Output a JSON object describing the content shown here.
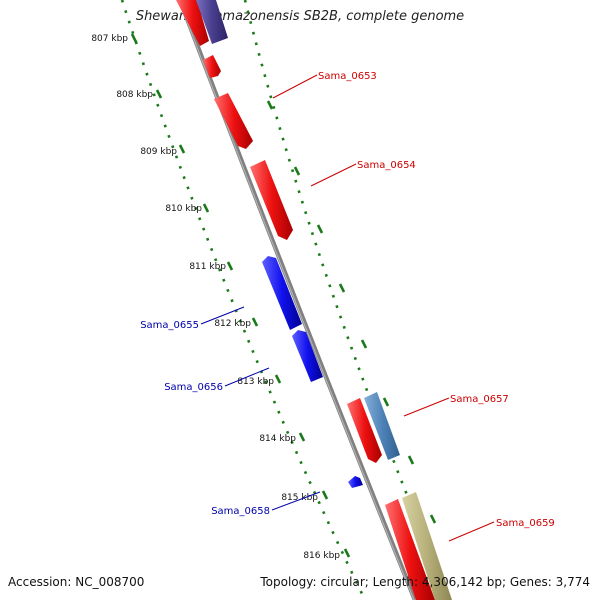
{
  "title": "Shewanella amazonensis SB2B, complete genome",
  "footer": {
    "accession": "Accession: NC_008700",
    "topology": "Topology: circular; Length: 4,306,142 bp; Genes: 3,774"
  },
  "colors": {
    "forward_gene": "#ee1111",
    "reverse_gene": "#1111ee",
    "forward_label": "#cc0000",
    "reverse_label": "#0000aa",
    "backbone": "#808080",
    "tick": "#1a7a1a",
    "steelblue_feature": "#4f83b8",
    "khaki_feature": "#b7b07a",
    "navy_feature": "#4a3f8f"
  },
  "kbp_ticks": [
    "807 kbp",
    "808 kbp",
    "809 kbp",
    "810 kbp",
    "811 kbp",
    "812 kbp",
    "813 kbp",
    "814 kbp",
    "815 kbp",
    "816 kbp"
  ],
  "genes": [
    {
      "label": "Sama_0653",
      "strand": "forward"
    },
    {
      "label": "Sama_0654",
      "strand": "forward"
    },
    {
      "label": "Sama_0655",
      "strand": "reverse"
    },
    {
      "label": "Sama_0656",
      "strand": "reverse"
    },
    {
      "label": "Sama_0657",
      "strand": "forward"
    },
    {
      "label": "Sama_0658",
      "strand": "reverse"
    },
    {
      "label": "Sama_0659",
      "strand": "forward"
    }
  ]
}
